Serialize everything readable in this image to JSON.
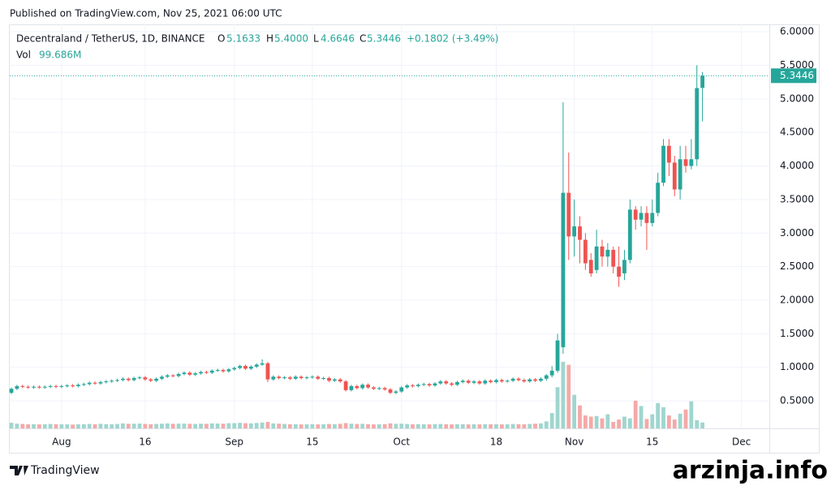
{
  "header": {
    "published": "Published on TradingView.com, Nov 25, 2021 06:00 UTC",
    "symbol": "Decentraland / TetherUS, 1D, BINANCE",
    "o_label": "O",
    "o_value": "5.1633",
    "h_label": "H",
    "h_value": "5.4000",
    "l_label": "L",
    "l_value": "4.6646",
    "c_label": "C",
    "c_value": "5.3446",
    "change": "+0.1802 (+3.49%)",
    "vol_label": "Vol",
    "vol_value": "99.686M"
  },
  "footer": {
    "brand": "TradingView",
    "watermark": "arzinja.info"
  },
  "chart_data": {
    "type": "candlestick",
    "up_color": "#26a69a",
    "down_color": "#ef5350",
    "up_volume_color": "#9fd6cf",
    "down_volume_color": "#f5a9a8",
    "grid": true,
    "last_price": 5.3446,
    "last_price_label": "5.3446",
    "xlim": [
      -0.3,
      136
    ],
    "xticks": [
      {
        "value": 9,
        "label": "Aug"
      },
      {
        "value": 24,
        "label": "16"
      },
      {
        "value": 40,
        "label": "Sep"
      },
      {
        "value": 54,
        "label": "15"
      },
      {
        "value": 70,
        "label": "Oct"
      },
      {
        "value": 87,
        "label": "18"
      },
      {
        "value": 101,
        "label": "Nov"
      },
      {
        "value": 115,
        "label": "15"
      },
      {
        "value": 131,
        "label": "Dec"
      }
    ],
    "ylim": [
      0.09,
      6.11
    ],
    "yticks": [
      {
        "value": 0.5,
        "label": "0.5000"
      },
      {
        "value": 1,
        "label": "1.0000"
      },
      {
        "value": 1.5,
        "label": "1.5000"
      },
      {
        "value": 2,
        "label": "2.0000"
      },
      {
        "value": 2.5,
        "label": "2.5000"
      },
      {
        "value": 3,
        "label": "3.0000"
      },
      {
        "value": 3.5,
        "label": "3.5000"
      },
      {
        "value": 4,
        "label": "4.0000"
      },
      {
        "value": 4.5,
        "label": "4.5000"
      },
      {
        "value": 5,
        "label": "5.0000"
      },
      {
        "value": 5.5,
        "label": "5.5000"
      },
      {
        "value": 6,
        "label": "6.0000"
      }
    ],
    "open": [
      0.62,
      0.68,
      0.72,
      0.71,
      0.7,
      0.71,
      0.7,
      0.71,
      0.72,
      0.71,
      0.72,
      0.73,
      0.72,
      0.74,
      0.75,
      0.77,
      0.76,
      0.78,
      0.79,
      0.8,
      0.81,
      0.83,
      0.81,
      0.84,
      0.85,
      0.82,
      0.8,
      0.83,
      0.86,
      0.88,
      0.87,
      0.9,
      0.92,
      0.89,
      0.91,
      0.93,
      0.92,
      0.95,
      0.96,
      0.94,
      0.97,
      0.99,
      1.02,
      0.98,
      1.01,
      1.04,
      1.06,
      0.82,
      0.86,
      0.84,
      0.85,
      0.83,
      0.86,
      0.84,
      0.85,
      0.86,
      0.83,
      0.84,
      0.8,
      0.82,
      0.79,
      0.66,
      0.72,
      0.69,
      0.74,
      0.7,
      0.68,
      0.69,
      0.67,
      0.62,
      0.64,
      0.7,
      0.73,
      0.72,
      0.74,
      0.75,
      0.73,
      0.76,
      0.79,
      0.76,
      0.74,
      0.78,
      0.8,
      0.77,
      0.79,
      0.76,
      0.8,
      0.78,
      0.81,
      0.79,
      0.8,
      0.83,
      0.81,
      0.79,
      0.82,
      0.8,
      0.83,
      0.88,
      0.95,
      1.3,
      3.6,
      2.95,
      3.1,
      2.9,
      2.6,
      2.45,
      2.8,
      2.65,
      2.75,
      2.5,
      2.4,
      2.6,
      3.35,
      3.2,
      3.3,
      3.15,
      3.3,
      3.75,
      4.3,
      4.05,
      3.65,
      4.1,
      4.0,
      4.1,
      5.1633
    ],
    "high": [
      0.7,
      0.74,
      0.74,
      0.73,
      0.73,
      0.73,
      0.73,
      0.74,
      0.74,
      0.74,
      0.75,
      0.75,
      0.76,
      0.77,
      0.79,
      0.79,
      0.8,
      0.81,
      0.82,
      0.83,
      0.85,
      0.85,
      0.86,
      0.87,
      0.87,
      0.84,
      0.85,
      0.88,
      0.9,
      0.9,
      0.92,
      0.94,
      0.94,
      0.93,
      0.95,
      0.95,
      0.97,
      0.98,
      0.98,
      0.99,
      1.01,
      1.04,
      1.04,
      1.03,
      1.06,
      1.12,
      1.08,
      0.88,
      0.88,
      0.87,
      0.87,
      0.88,
      0.88,
      0.87,
      0.88,
      0.88,
      0.86,
      0.86,
      0.84,
      0.84,
      0.81,
      0.74,
      0.74,
      0.76,
      0.76,
      0.72,
      0.71,
      0.71,
      0.69,
      0.66,
      0.72,
      0.75,
      0.75,
      0.76,
      0.77,
      0.77,
      0.78,
      0.81,
      0.81,
      0.78,
      0.8,
      0.82,
      0.82,
      0.81,
      0.81,
      0.82,
      0.82,
      0.83,
      0.83,
      0.82,
      0.85,
      0.85,
      0.83,
      0.84,
      0.84,
      0.85,
      0.9,
      1.02,
      1.5,
      4.95,
      4.2,
      3.5,
      3.25,
      3.0,
      2.7,
      3.05,
      2.9,
      2.85,
      2.8,
      2.8,
      2.75,
      3.5,
      3.4,
      3.4,
      3.4,
      3.5,
      3.9,
      4.4,
      4.4,
      4.15,
      4.3,
      4.3,
      4.4,
      5.5,
      5.4
    ],
    "low": [
      0.6,
      0.66,
      0.69,
      0.68,
      0.68,
      0.68,
      0.68,
      0.69,
      0.69,
      0.69,
      0.7,
      0.7,
      0.7,
      0.72,
      0.73,
      0.74,
      0.74,
      0.76,
      0.77,
      0.78,
      0.79,
      0.79,
      0.79,
      0.82,
      0.8,
      0.78,
      0.78,
      0.81,
      0.84,
      0.85,
      0.85,
      0.88,
      0.87,
      0.87,
      0.89,
      0.9,
      0.9,
      0.93,
      0.92,
      0.92,
      0.95,
      0.97,
      0.96,
      0.96,
      0.99,
      1.02,
      0.78,
      0.8,
      0.82,
      0.82,
      0.81,
      0.81,
      0.82,
      0.82,
      0.83,
      0.81,
      0.81,
      0.78,
      0.78,
      0.77,
      0.64,
      0.64,
      0.67,
      0.67,
      0.68,
      0.66,
      0.66,
      0.65,
      0.6,
      0.6,
      0.62,
      0.68,
      0.7,
      0.7,
      0.72,
      0.71,
      0.71,
      0.74,
      0.74,
      0.72,
      0.72,
      0.76,
      0.75,
      0.75,
      0.74,
      0.74,
      0.76,
      0.76,
      0.77,
      0.77,
      0.78,
      0.79,
      0.77,
      0.77,
      0.78,
      0.78,
      0.8,
      0.85,
      0.92,
      1.2,
      2.6,
      2.65,
      2.55,
      2.45,
      2.35,
      2.4,
      2.5,
      2.5,
      2.4,
      2.2,
      2.3,
      2.55,
      3.05,
      3.1,
      2.75,
      3.1,
      3.25,
      3.7,
      3.85,
      3.55,
      3.5,
      3.9,
      3.95,
      4.0,
      4.6646
    ],
    "close": [
      0.68,
      0.72,
      0.71,
      0.7,
      0.71,
      0.7,
      0.71,
      0.72,
      0.71,
      0.72,
      0.73,
      0.72,
      0.74,
      0.75,
      0.77,
      0.76,
      0.78,
      0.79,
      0.8,
      0.81,
      0.83,
      0.81,
      0.84,
      0.85,
      0.82,
      0.8,
      0.83,
      0.86,
      0.88,
      0.87,
      0.9,
      0.92,
      0.89,
      0.91,
      0.93,
      0.92,
      0.95,
      0.96,
      0.94,
      0.97,
      0.99,
      1.02,
      0.98,
      1.01,
      1.04,
      1.06,
      0.82,
      0.86,
      0.84,
      0.85,
      0.83,
      0.86,
      0.84,
      0.85,
      0.86,
      0.83,
      0.84,
      0.8,
      0.82,
      0.79,
      0.66,
      0.72,
      0.69,
      0.74,
      0.7,
      0.68,
      0.69,
      0.67,
      0.62,
      0.64,
      0.7,
      0.73,
      0.72,
      0.74,
      0.75,
      0.73,
      0.76,
      0.79,
      0.76,
      0.74,
      0.78,
      0.8,
      0.77,
      0.79,
      0.76,
      0.8,
      0.78,
      0.81,
      0.79,
      0.8,
      0.83,
      0.81,
      0.79,
      0.82,
      0.8,
      0.83,
      0.88,
      0.95,
      1.4,
      3.6,
      2.95,
      3.1,
      2.9,
      2.55,
      2.4,
      2.8,
      2.65,
      2.75,
      2.5,
      2.35,
      2.6,
      3.35,
      3.2,
      3.3,
      3.15,
      3.3,
      3.75,
      4.3,
      4.05,
      3.65,
      4.1,
      4.0,
      4.1,
      5.16,
      5.3446
    ],
    "volume": [
      95,
      80,
      75,
      70,
      72,
      68,
      70,
      75,
      72,
      70,
      68,
      65,
      70,
      72,
      75,
      70,
      78,
      72,
      70,
      75,
      85,
      78,
      80,
      82,
      76,
      70,
      75,
      80,
      85,
      78,
      80,
      82,
      78,
      75,
      80,
      78,
      85,
      82,
      80,
      88,
      90,
      95,
      88,
      85,
      92,
      100,
      110,
      85,
      80,
      75,
      70,
      72,
      68,
      70,
      72,
      68,
      70,
      75,
      72,
      78,
      90,
      80,
      75,
      78,
      72,
      68,
      70,
      72,
      85,
      78,
      80,
      75,
      70,
      72,
      70,
      68,
      72,
      75,
      70,
      68,
      70,
      72,
      68,
      70,
      68,
      72,
      70,
      72,
      68,
      70,
      75,
      72,
      70,
      75,
      80,
      85,
      120,
      260,
      700,
      1130,
      1080,
      570,
      390,
      220,
      200,
      210,
      170,
      240,
      110,
      150,
      200,
      170,
      470,
      380,
      160,
      240,
      430,
      360,
      220,
      150,
      250,
      320,
      460,
      140,
      99.686
    ]
  }
}
